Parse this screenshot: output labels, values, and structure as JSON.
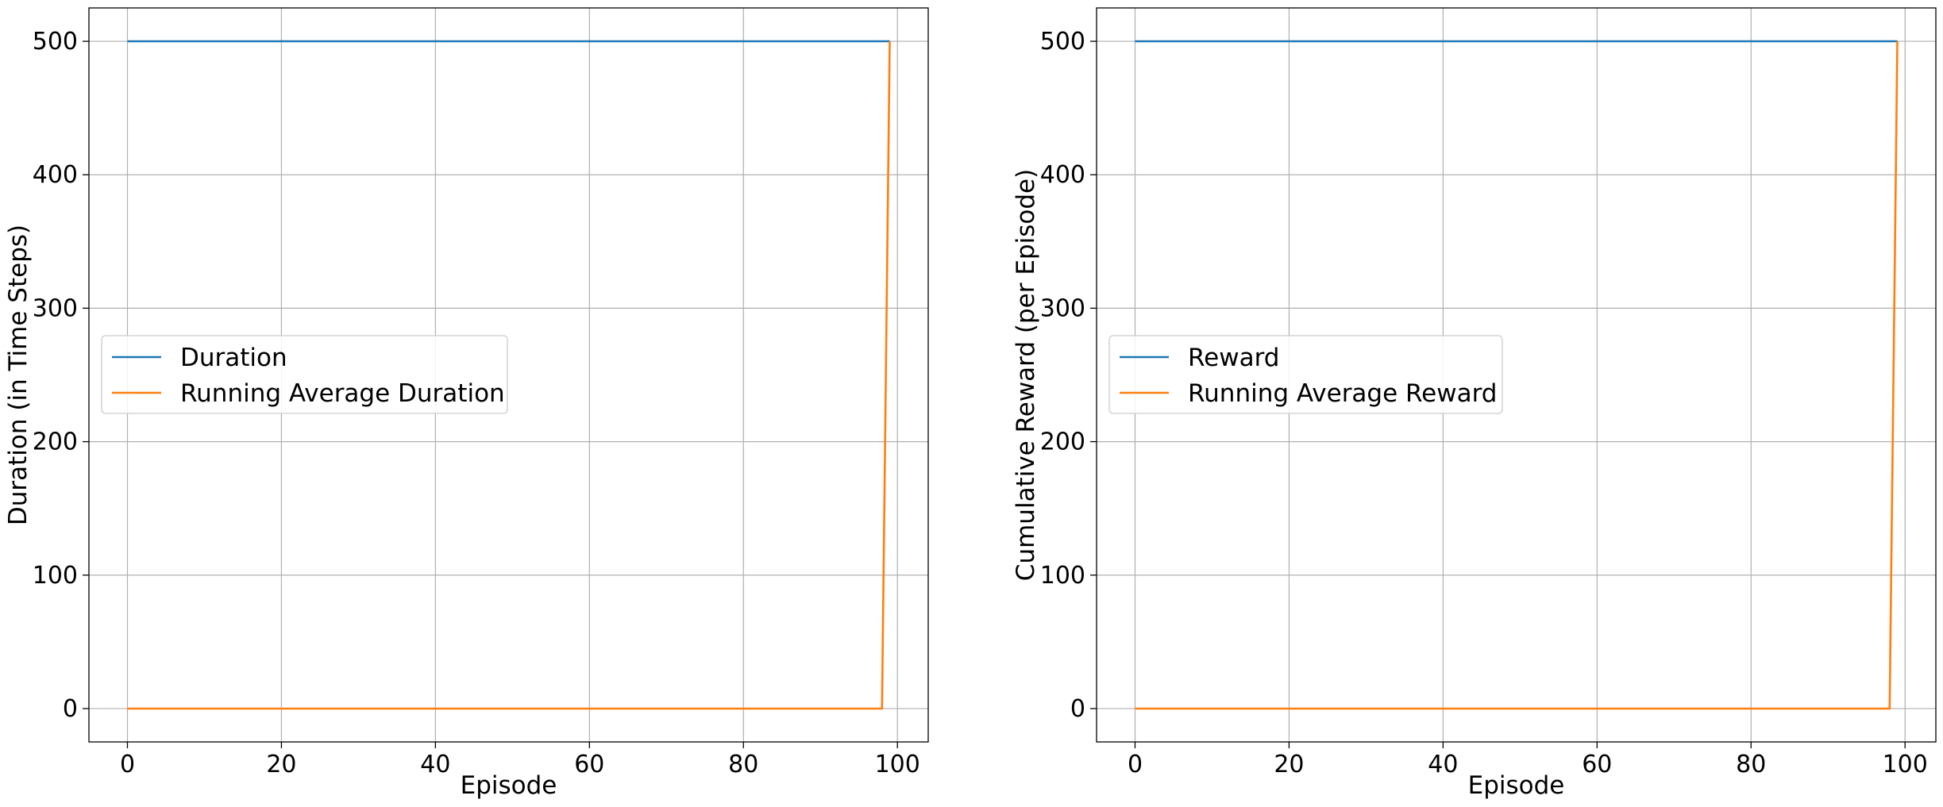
{
  "chart_data": [
    {
      "type": "line",
      "title": "",
      "xlabel": "Episode",
      "ylabel": "Duration (in Time Steps)",
      "xlim": [
        -5,
        104
      ],
      "ylim": [
        -25,
        525
      ],
      "x_ticks": [
        0,
        20,
        40,
        60,
        80,
        100
      ],
      "y_ticks": [
        0,
        100,
        200,
        300,
        400,
        500
      ],
      "grid": true,
      "legend_position": "center-left",
      "series": [
        {
          "name": "Duration",
          "color": "#1f77b4",
          "x": [
            0,
            99
          ],
          "y": [
            500,
            500
          ]
        },
        {
          "name": "Running Average Duration",
          "color": "#ff7f0e",
          "x": [
            0,
            98,
            99
          ],
          "y": [
            0,
            0,
            500
          ]
        }
      ]
    },
    {
      "type": "line",
      "title": "",
      "xlabel": "Episode",
      "ylabel": "Cumulative Reward (per Episode)",
      "xlim": [
        -5,
        104
      ],
      "ylim": [
        -25,
        525
      ],
      "x_ticks": [
        0,
        20,
        40,
        60,
        80,
        100
      ],
      "y_ticks": [
        0,
        100,
        200,
        300,
        400,
        500
      ],
      "grid": true,
      "legend_position": "center-left",
      "series": [
        {
          "name": "Reward",
          "color": "#1f77b4",
          "x": [
            0,
            99
          ],
          "y": [
            500,
            500
          ]
        },
        {
          "name": "Running Average Reward",
          "color": "#ff7f0e",
          "x": [
            0,
            98,
            99
          ],
          "y": [
            0,
            0,
            500
          ]
        }
      ]
    }
  ]
}
